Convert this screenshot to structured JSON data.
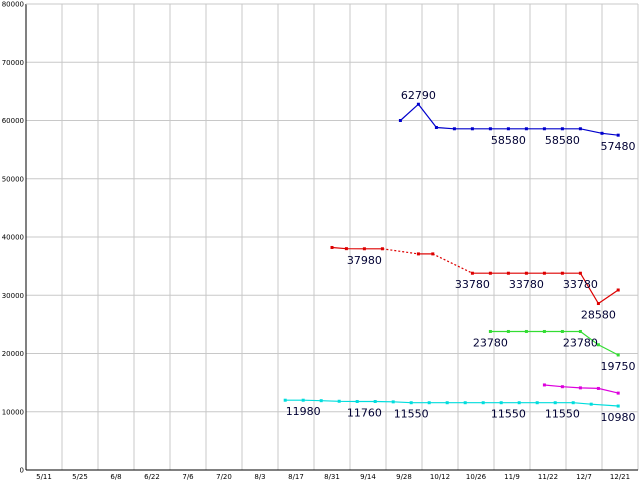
{
  "chart_data": {
    "type": "line",
    "title": "",
    "xlabel": "",
    "ylabel": "",
    "x_ticks": [
      "5/11",
      "5/25",
      "6/8",
      "6/22",
      "7/6",
      "7/20",
      "8/3",
      "8/17",
      "8/31",
      "9/14",
      "9/28",
      "10/12",
      "10/26",
      "11/9",
      "11/22",
      "12/7",
      "12/21"
    ],
    "y_ticks": [
      "0",
      "10000",
      "20000",
      "30000",
      "40000",
      "50000",
      "60000",
      "70000",
      "80000"
    ],
    "ylim": [
      0,
      80000
    ],
    "grid": true,
    "colors": {
      "blue": "#0000cc",
      "red": "#dd0000",
      "green": "#33dd33",
      "magenta": "#dd00dd",
      "cyan": "#00dddd",
      "grid": "#c8c8c8",
      "label": "#000033"
    },
    "series": [
      {
        "color": "#0000cc",
        "points": [
          {
            "x": 9.9,
            "y": 60000
          },
          {
            "x": 10.4,
            "y": 62790
          },
          {
            "x": 10.9,
            "y": 58800
          },
          {
            "x": 11.4,
            "y": 58580
          },
          {
            "x": 11.9,
            "y": 58580
          },
          {
            "x": 12.4,
            "y": 58580
          },
          {
            "x": 12.9,
            "y": 58580
          },
          {
            "x": 13.4,
            "y": 58580
          },
          {
            "x": 13.9,
            "y": 58580
          },
          {
            "x": 14.4,
            "y": 58580
          },
          {
            "x": 14.9,
            "y": 58580
          },
          {
            "x": 15.5,
            "y": 57800
          },
          {
            "x": 15.95,
            "y": 57480
          }
        ],
        "segments": [
          {
            "from": 0,
            "to": 12,
            "dashed": false
          }
        ]
      },
      {
        "color": "#dd0000",
        "points": [
          {
            "x": 8.0,
            "y": 38200
          },
          {
            "x": 8.4,
            "y": 38000
          },
          {
            "x": 8.9,
            "y": 37980
          },
          {
            "x": 9.4,
            "y": 37980
          },
          {
            "x": 10.4,
            "y": 37100
          },
          {
            "x": 10.8,
            "y": 37100
          },
          {
            "x": 11.9,
            "y": 33780
          },
          {
            "x": 12.4,
            "y": 33780
          },
          {
            "x": 12.9,
            "y": 33780
          },
          {
            "x": 13.4,
            "y": 33780
          },
          {
            "x": 13.9,
            "y": 33780
          },
          {
            "x": 14.4,
            "y": 33780
          },
          {
            "x": 14.9,
            "y": 33780
          },
          {
            "x": 15.4,
            "y": 28580
          },
          {
            "x": 15.95,
            "y": 30900
          }
        ],
        "segments": [
          {
            "from": 0,
            "to": 3,
            "dashed": false
          },
          {
            "from": 3,
            "to": 4,
            "dashed": true
          },
          {
            "from": 4,
            "to": 5,
            "dashed": false
          },
          {
            "from": 5,
            "to": 6,
            "dashed": true
          },
          {
            "from": 6,
            "to": 14,
            "dashed": false
          }
        ]
      },
      {
        "color": "#33dd33",
        "points": [
          {
            "x": 12.4,
            "y": 23780
          },
          {
            "x": 12.9,
            "y": 23780
          },
          {
            "x": 13.4,
            "y": 23780
          },
          {
            "x": 13.9,
            "y": 23780
          },
          {
            "x": 14.4,
            "y": 23780
          },
          {
            "x": 14.9,
            "y": 23780
          },
          {
            "x": 15.4,
            "y": 21500
          },
          {
            "x": 15.95,
            "y": 19750
          }
        ],
        "segments": [
          {
            "from": 0,
            "to": 7,
            "dashed": false
          }
        ]
      },
      {
        "color": "#dd00dd",
        "points": [
          {
            "x": 13.9,
            "y": 14600
          },
          {
            "x": 14.4,
            "y": 14300
          },
          {
            "x": 14.9,
            "y": 14100
          },
          {
            "x": 15.4,
            "y": 14000
          },
          {
            "x": 15.95,
            "y": 13200
          }
        ],
        "segments": [
          {
            "from": 0,
            "to": 4,
            "dashed": false
          }
        ]
      },
      {
        "color": "#00dddd",
        "points": [
          {
            "x": 6.7,
            "y": 11980
          },
          {
            "x": 7.2,
            "y": 11980
          },
          {
            "x": 7.7,
            "y": 11900
          },
          {
            "x": 8.2,
            "y": 11800
          },
          {
            "x": 8.7,
            "y": 11760
          },
          {
            "x": 9.2,
            "y": 11760
          },
          {
            "x": 9.7,
            "y": 11700
          },
          {
            "x": 10.2,
            "y": 11550
          },
          {
            "x": 10.7,
            "y": 11550
          },
          {
            "x": 11.2,
            "y": 11550
          },
          {
            "x": 11.7,
            "y": 11550
          },
          {
            "x": 12.2,
            "y": 11550
          },
          {
            "x": 12.7,
            "y": 11550
          },
          {
            "x": 13.2,
            "y": 11550
          },
          {
            "x": 13.7,
            "y": 11550
          },
          {
            "x": 14.2,
            "y": 11550
          },
          {
            "x": 14.7,
            "y": 11550
          },
          {
            "x": 15.2,
            "y": 11300
          },
          {
            "x": 15.95,
            "y": 10980
          }
        ],
        "segments": [
          {
            "from": 0,
            "to": 18,
            "dashed": false
          }
        ]
      }
    ],
    "data_labels": [
      {
        "text": "62790",
        "x": 10.4,
        "y": 62790
      },
      {
        "text": "58580",
        "x": 12.9,
        "y": 58580
      },
      {
        "text": "58580",
        "x": 14.4,
        "y": 58580
      },
      {
        "text": "57480",
        "x": 15.95,
        "y": 57480
      },
      {
        "text": "37980",
        "x": 8.9,
        "y": 37980
      },
      {
        "text": "33780",
        "x": 11.9,
        "y": 33780
      },
      {
        "text": "33780",
        "x": 13.4,
        "y": 33780
      },
      {
        "text": "33780",
        "x": 14.9,
        "y": 33780
      },
      {
        "text": "28580",
        "x": 15.4,
        "y": 28580
      },
      {
        "text": "23780",
        "x": 12.4,
        "y": 23780
      },
      {
        "text": "23780",
        "x": 14.9,
        "y": 23780
      },
      {
        "text": "19750",
        "x": 15.95,
        "y": 19750
      },
      {
        "text": "11980",
        "x": 7.2,
        "y": 11980
      },
      {
        "text": "11760",
        "x": 8.9,
        "y": 11760
      },
      {
        "text": "11550",
        "x": 10.2,
        "y": 11550
      },
      {
        "text": "11550",
        "x": 12.9,
        "y": 11550
      },
      {
        "text": "11550",
        "x": 14.4,
        "y": 11550
      },
      {
        "text": "10980",
        "x": 15.95,
        "y": 10980
      }
    ]
  }
}
